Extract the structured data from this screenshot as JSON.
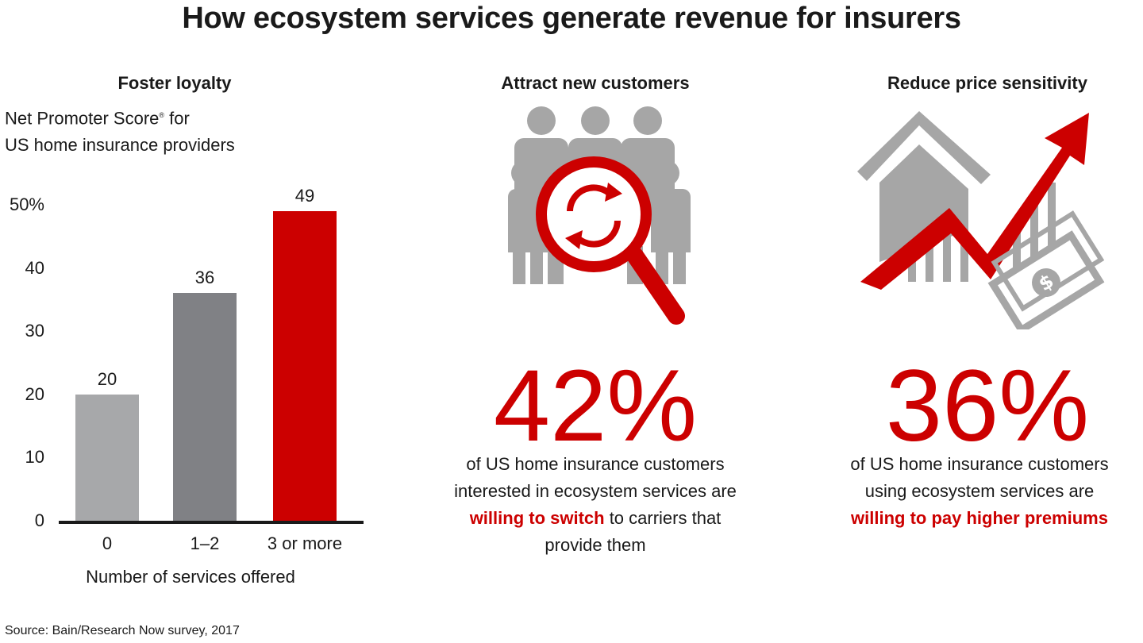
{
  "title": "How ecosystem services generate revenue for insurers",
  "colors": {
    "red": "#cc0000",
    "light_gray": "#a7a8aa",
    "dark_gray": "#808185",
    "icon_gray": "#a6a6a6"
  },
  "panel1": {
    "heading": "Foster loyalty",
    "subtitle_line1": "Net Promoter Score",
    "registered_mark": "®",
    "subtitle_line1_end": " for",
    "subtitle_line2": "US home insurance providers"
  },
  "panel2": {
    "heading": "Attract new customers",
    "icon": "people-magnifier-refresh-icon",
    "stat": "42%",
    "line1": "of US home insurance customers",
    "line2": "interested in ecosystem services are",
    "line3_em": "willing to switch",
    "line3_rest": " to carriers that",
    "line4": "provide them"
  },
  "panel3": {
    "heading": "Reduce price sensitivity",
    "icon": "house-arrow-money-icon",
    "stat": "36%",
    "line1": "of US home insurance customers",
    "line2": "using ecosystem services are",
    "line3_em": "willing to pay higher premiums"
  },
  "chart_data": {
    "type": "bar",
    "categories": [
      "0",
      "1–2",
      "3 or more"
    ],
    "values": [
      20,
      36,
      49
    ],
    "bar_colors": [
      "#a7a8aa",
      "#808185",
      "#cc0000"
    ],
    "ylim": [
      0,
      50
    ],
    "yticks": [
      "0",
      "10",
      "20",
      "30",
      "40",
      "50%"
    ],
    "xlabel": "Number of services offered"
  },
  "source": "Source: Bain/Research Now survey, 2017"
}
